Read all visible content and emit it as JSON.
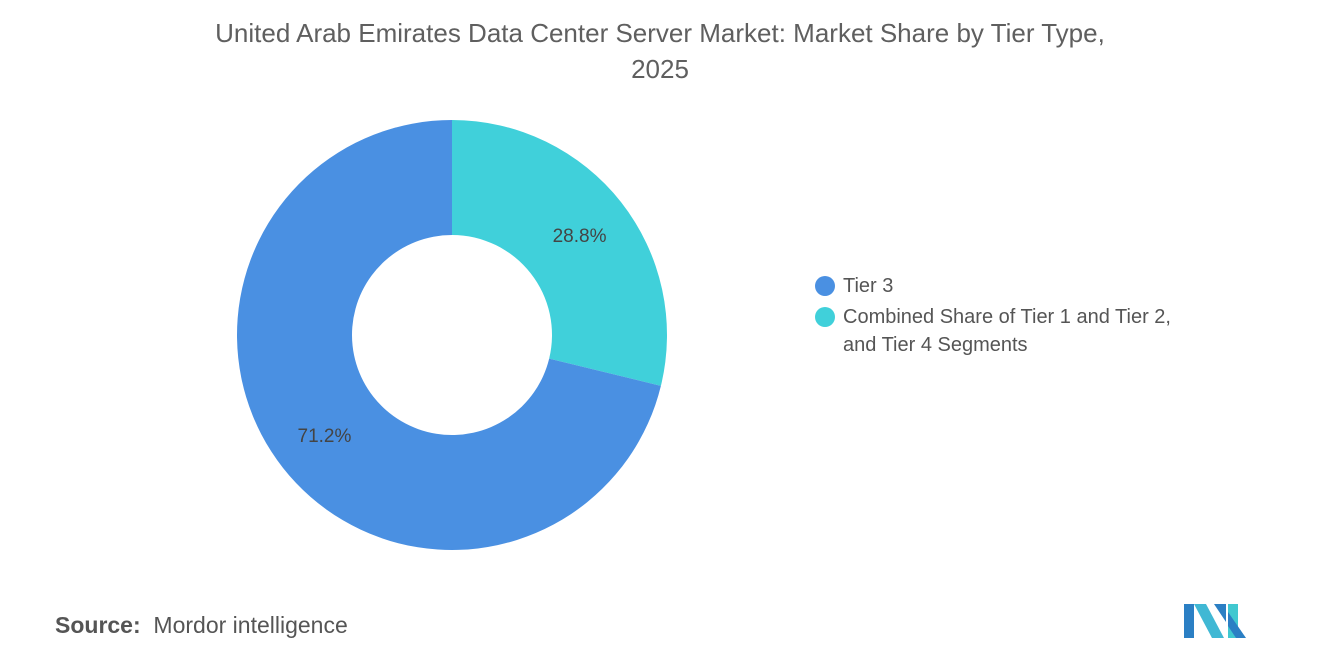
{
  "chart_data": {
    "type": "pie",
    "donut": true,
    "title_line1": "United Arab Emirates Data Center Server Market: Market Share by Tier Type,",
    "title_line2": "2025",
    "slices": [
      {
        "name": "Combined Share of Tier 1 and Tier 2, and Tier 4 Segments",
        "legend_line1": "Combined Share of Tier 1 and Tier 2,",
        "legend_line2": "and Tier 4 Segments",
        "value": 28.8,
        "label": "28.8%",
        "color": "#40d0da"
      },
      {
        "name": "Tier 3",
        "legend_line1": "Tier 3",
        "value": 71.2,
        "label": "71.2%",
        "color": "#4a90e2"
      }
    ],
    "legend_placement": "right"
  },
  "source": {
    "label": "Source:",
    "value": "Mordor intelligence"
  },
  "logo": {
    "text": "Mordor Intelligence"
  }
}
